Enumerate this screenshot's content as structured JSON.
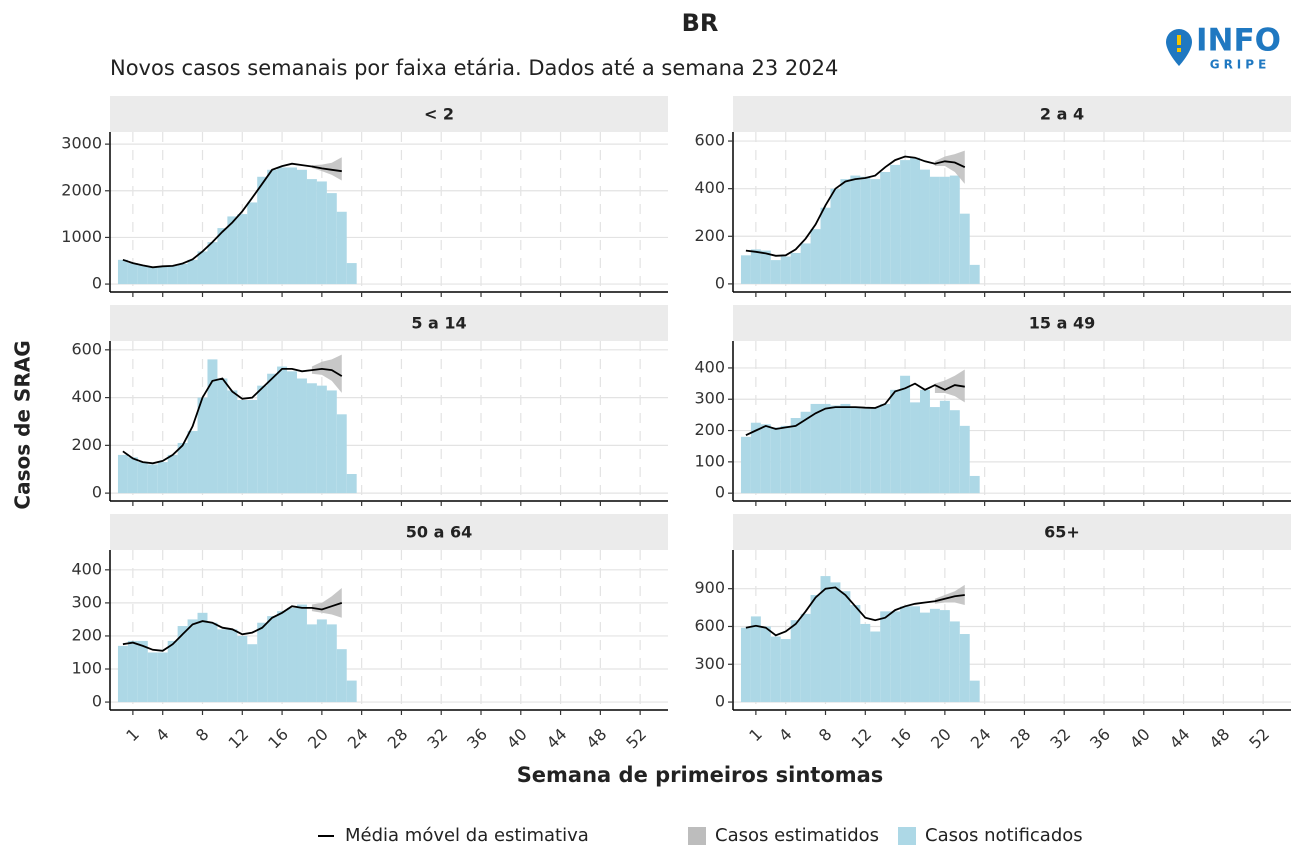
{
  "chart_data": {
    "type": "faceted-bar-line",
    "title": "BR",
    "subtitle": "Novos casos semanais por faixa etária. Dados até a semana 23 2024",
    "y_label": "Casos de SRAG",
    "x_label": "Semana de primeiros sintomas",
    "logo_text": [
      "INFO",
      "GRIPE"
    ],
    "x": [
      0,
      1,
      2,
      3,
      4,
      5,
      6,
      7,
      8,
      9,
      10,
      11,
      12,
      13,
      14,
      15,
      16,
      17,
      18,
      19,
      20,
      21,
      22,
      23
    ],
    "xlim": [
      -1.3,
      54.8
    ],
    "xticks": [
      1,
      4,
      8,
      12,
      16,
      20,
      24,
      28,
      32,
      36,
      40,
      44,
      48,
      52
    ],
    "grid": true,
    "legend": [
      {
        "name": "Média móvel da estimativa",
        "color": "#000000"
      },
      {
        "name": "Casos estimatidos",
        "color": "#bdbdbd"
      },
      {
        "name": "Casos notificados",
        "color": "#add8e6"
      }
    ],
    "facets": [
      {
        "title": "< 2",
        "ylim": [
          -170,
          3260
        ],
        "yticks": [
          0,
          1000,
          2000,
          3000
        ],
        "notified": [
          520,
          450,
          400,
          360,
          380,
          390,
          430,
          520,
          700,
          900,
          1200,
          1450,
          1500,
          1750,
          2300,
          2450,
          2500,
          2500,
          2450,
          2250,
          2200,
          1950,
          1550,
          450
        ],
        "moving_average": [
          520,
          450,
          400,
          360,
          380,
          390,
          440,
          530,
          700,
          900,
          1120,
          1320,
          1560,
          1850,
          2150,
          2450,
          2530,
          2580,
          2550,
          2520,
          2480,
          2450,
          2420,
          null
        ],
        "estimate_lower": [
          null,
          null,
          null,
          null,
          null,
          null,
          null,
          null,
          null,
          null,
          null,
          null,
          null,
          null,
          null,
          null,
          null,
          null,
          null,
          2490,
          2420,
          2340,
          2220,
          null
        ],
        "estimate_upper": [
          null,
          null,
          null,
          null,
          null,
          null,
          null,
          null,
          null,
          null,
          null,
          null,
          null,
          null,
          null,
          null,
          null,
          null,
          null,
          2550,
          2560,
          2600,
          2720,
          null
        ]
      },
      {
        "title": "2 a 4",
        "ylim": [
          -34,
          638
        ],
        "yticks": [
          0,
          200,
          400,
          600
        ],
        "notified": [
          120,
          145,
          140,
          100,
          115,
          130,
          170,
          230,
          320,
          400,
          440,
          455,
          450,
          440,
          470,
          500,
          520,
          530,
          480,
          450,
          450,
          455,
          295,
          80
        ],
        "moving_average": [
          140,
          135,
          128,
          118,
          120,
          145,
          190,
          250,
          330,
          400,
          430,
          440,
          445,
          455,
          490,
          520,
          535,
          530,
          515,
          505,
          515,
          510,
          490,
          null
        ],
        "estimate_lower": [
          null,
          null,
          null,
          null,
          null,
          null,
          null,
          null,
          null,
          null,
          null,
          null,
          null,
          null,
          null,
          null,
          null,
          null,
          null,
          495,
          495,
          470,
          420,
          null
        ],
        "estimate_upper": [
          null,
          null,
          null,
          null,
          null,
          null,
          null,
          null,
          null,
          null,
          null,
          null,
          null,
          null,
          null,
          null,
          null,
          null,
          null,
          515,
          535,
          545,
          560,
          null
        ]
      },
      {
        "title": "5 a 14",
        "ylim": [
          -33,
          637
        ],
        "yticks": [
          0,
          200,
          400,
          600
        ],
        "notified": [
          160,
          150,
          130,
          120,
          130,
          160,
          210,
          260,
          400,
          560,
          480,
          430,
          390,
          390,
          450,
          500,
          530,
          510,
          480,
          460,
          450,
          430,
          330,
          80
        ],
        "moving_average": [
          175,
          145,
          130,
          125,
          135,
          160,
          200,
          280,
          400,
          470,
          480,
          425,
          395,
          400,
          440,
          480,
          520,
          520,
          510,
          515,
          520,
          515,
          490,
          null
        ],
        "estimate_lower": [
          null,
          null,
          null,
          null,
          null,
          null,
          null,
          null,
          null,
          null,
          null,
          null,
          null,
          null,
          null,
          null,
          null,
          null,
          null,
          500,
          495,
          470,
          420,
          null
        ],
        "estimate_upper": [
          null,
          null,
          null,
          null,
          null,
          null,
          null,
          null,
          null,
          null,
          null,
          null,
          null,
          null,
          null,
          null,
          null,
          null,
          null,
          530,
          550,
          560,
          580,
          null
        ]
      },
      {
        "title": "15 a 49",
        "ylim": [
          -25,
          486
        ],
        "yticks": [
          0,
          100,
          200,
          300,
          400
        ],
        "notified": [
          180,
          225,
          220,
          210,
          215,
          240,
          260,
          285,
          285,
          280,
          285,
          275,
          270,
          275,
          285,
          330,
          375,
          290,
          330,
          275,
          295,
          265,
          215,
          55
        ],
        "moving_average": [
          185,
          200,
          215,
          205,
          210,
          215,
          235,
          255,
          270,
          275,
          275,
          275,
          273,
          272,
          285,
          325,
          335,
          350,
          330,
          345,
          330,
          345,
          340,
          null
        ],
        "estimate_lower": [
          null,
          null,
          null,
          null,
          null,
          null,
          null,
          null,
          null,
          null,
          null,
          null,
          null,
          null,
          null,
          null,
          null,
          null,
          null,
          320,
          320,
          310,
          290,
          null
        ],
        "estimate_upper": [
          null,
          null,
          null,
          null,
          null,
          null,
          null,
          null,
          null,
          null,
          null,
          null,
          null,
          null,
          null,
          null,
          null,
          null,
          null,
          350,
          360,
          375,
          395,
          null
        ]
      },
      {
        "title": "50 a 64",
        "ylim": [
          -24,
          460
        ],
        "yticks": [
          0,
          100,
          200,
          300,
          400
        ],
        "notified": [
          170,
          185,
          185,
          150,
          150,
          185,
          230,
          250,
          270,
          240,
          220,
          220,
          200,
          175,
          240,
          260,
          275,
          285,
          295,
          235,
          250,
          235,
          160,
          65
        ],
        "moving_average": [
          175,
          180,
          170,
          158,
          155,
          175,
          205,
          235,
          245,
          240,
          225,
          220,
          205,
          210,
          225,
          255,
          270,
          290,
          285,
          285,
          280,
          290,
          300,
          null
        ],
        "estimate_lower": [
          null,
          null,
          null,
          null,
          null,
          null,
          null,
          null,
          null,
          null,
          null,
          null,
          null,
          null,
          null,
          null,
          null,
          null,
          null,
          275,
          270,
          265,
          255,
          null
        ],
        "estimate_upper": [
          null,
          null,
          null,
          null,
          null,
          null,
          null,
          null,
          null,
          null,
          null,
          null,
          null,
          null,
          null,
          null,
          null,
          null,
          null,
          295,
          300,
          320,
          345,
          null
        ]
      },
      {
        "title": "65+",
        "ylim": [
          -63,
          1207
        ],
        "yticks": [
          0,
          300,
          600,
          900
        ],
        "notified": [
          590,
          680,
          600,
          520,
          500,
          650,
          700,
          850,
          1000,
          950,
          880,
          770,
          620,
          560,
          720,
          720,
          760,
          760,
          710,
          740,
          730,
          640,
          540,
          170
        ],
        "moving_average": [
          590,
          605,
          590,
          530,
          560,
          620,
          720,
          830,
          900,
          910,
          850,
          760,
          670,
          650,
          670,
          730,
          760,
          780,
          790,
          800,
          820,
          840,
          850,
          null
        ],
        "estimate_lower": [
          null,
          null,
          null,
          null,
          null,
          null,
          null,
          null,
          null,
          null,
          null,
          null,
          null,
          null,
          null,
          null,
          null,
          null,
          null,
          780,
          790,
          790,
          770,
          null
        ],
        "estimate_upper": [
          null,
          null,
          null,
          null,
          null,
          null,
          null,
          null,
          null,
          null,
          null,
          null,
          null,
          null,
          null,
          null,
          null,
          null,
          null,
          820,
          850,
          880,
          930,
          null
        ]
      }
    ]
  }
}
